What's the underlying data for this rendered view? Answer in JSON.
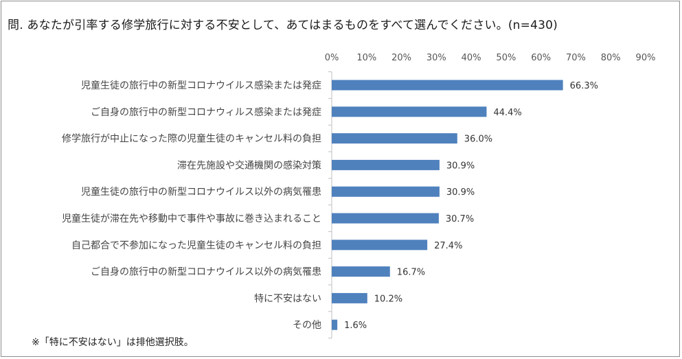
{
  "chart_data": {
    "type": "bar",
    "orientation": "horizontal",
    "title": "問. あなたが引率する修学旅行に対する不安として、あてはまるものをすべて選んでください。(n=430)",
    "categories": [
      "児童生徒の旅行中の新型コロナウイルス感染または発症",
      "ご自身の旅行中の新型コロナウィルス感染または発症",
      "修学旅行が中止になった際の児童生徒のキャンセル料の負担",
      "滞在先施設や交通機関の感染対策",
      "児童生徒の旅行中の新型コロナウイルス以外の病気罹患",
      "児童生徒が滞在先や移動中で事件や事故に巻き込まれること",
      "自己都合で不参加になった児童生徒のキャンセル料の負担",
      "ご自身の旅行中の新型コロナウイルス以外の病気罹患",
      "特に不安はない",
      "その他"
    ],
    "values": [
      66.3,
      44.4,
      36.0,
      30.9,
      30.9,
      30.7,
      27.4,
      16.7,
      10.2,
      1.6
    ],
    "value_labels": [
      "66.3%",
      "44.4%",
      "36.0%",
      "30.9%",
      "30.9%",
      "30.7%",
      "27.4%",
      "16.7%",
      "10.2%",
      "1.6%"
    ],
    "xlim": [
      0,
      90
    ],
    "x_ticks": [
      "0%",
      "10%",
      "20%",
      "30%",
      "40%",
      "50%",
      "60%",
      "70%",
      "80%",
      "90%"
    ],
    "x_axis_position": "top",
    "grid": false,
    "bar_color": "#4f81bd",
    "footnote": "※「特に不安はない」は排他選択肢。"
  }
}
